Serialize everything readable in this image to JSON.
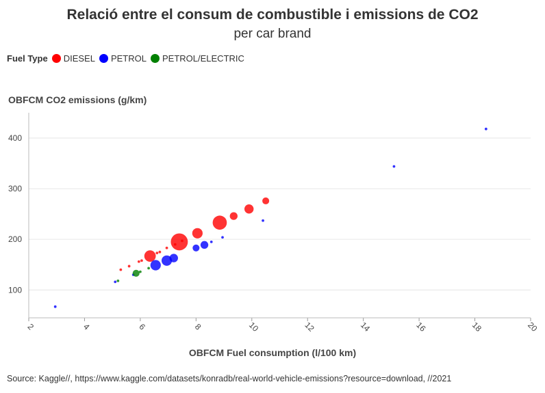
{
  "chart_data": {
    "type": "scatter",
    "title": "Relació entre el consum de combustible i emissions de CO2",
    "subtitle": "per car brand",
    "xlabel": "OBFCM Fuel consumption (l/100 km)",
    "ylabel": "OBFCM CO2 emissions (g/km)",
    "xlim": [
      2,
      20
    ],
    "ylim": [
      45,
      450
    ],
    "x_ticks": [
      2,
      4,
      6,
      8,
      10,
      12,
      14,
      16,
      18,
      20
    ],
    "y_ticks": [
      100,
      200,
      300,
      400
    ],
    "grid": true,
    "legend_title": "Fuel Type",
    "legend_position": "top-left",
    "source": "Source: Kaggle//, https://www.kaggle.com/datasets/konradb/real-world-vehicle-emissions?resource=download, //2021",
    "series": [
      {
        "name": "DIESEL",
        "color": "#ff0000",
        "points": [
          {
            "x": 5.3,
            "y": 140,
            "size": 1
          },
          {
            "x": 5.6,
            "y": 147,
            "size": 1
          },
          {
            "x": 5.95,
            "y": 156,
            "size": 1
          },
          {
            "x": 6.05,
            "y": 158,
            "size": 1
          },
          {
            "x": 6.35,
            "y": 167,
            "size": 5
          },
          {
            "x": 6.6,
            "y": 173,
            "size": 1
          },
          {
            "x": 6.7,
            "y": 175,
            "size": 1
          },
          {
            "x": 6.95,
            "y": 183,
            "size": 1
          },
          {
            "x": 7.25,
            "y": 190,
            "size": 1
          },
          {
            "x": 7.4,
            "y": 195,
            "size": 12
          },
          {
            "x": 7.5,
            "y": 197,
            "size": 1
          },
          {
            "x": 8.05,
            "y": 212,
            "size": 4
          },
          {
            "x": 8.85,
            "y": 233,
            "size": 8
          },
          {
            "x": 9.35,
            "y": 246,
            "size": 2
          },
          {
            "x": 9.9,
            "y": 260,
            "size": 3
          },
          {
            "x": 10.5,
            "y": 276,
            "size": 1.5
          }
        ]
      },
      {
        "name": "PETROL",
        "color": "#0000ff",
        "points": [
          {
            "x": 2.95,
            "y": 67,
            "size": 1
          },
          {
            "x": 5.1,
            "y": 116,
            "size": 1
          },
          {
            "x": 5.75,
            "y": 130,
            "size": 1
          },
          {
            "x": 6.55,
            "y": 149,
            "size": 4
          },
          {
            "x": 6.95,
            "y": 158,
            "size": 4
          },
          {
            "x": 7.2,
            "y": 163,
            "size": 2.5
          },
          {
            "x": 8.0,
            "y": 183,
            "size": 1.5
          },
          {
            "x": 8.3,
            "y": 189,
            "size": 2
          },
          {
            "x": 8.55,
            "y": 195,
            "size": 1
          },
          {
            "x": 8.95,
            "y": 204,
            "size": 1
          },
          {
            "x": 10.4,
            "y": 237,
            "size": 1
          },
          {
            "x": 15.1,
            "y": 344,
            "size": 1
          },
          {
            "x": 18.4,
            "y": 418,
            "size": 1
          }
        ]
      },
      {
        "name": "PETROL/ELECTRIC",
        "color": "#008000",
        "points": [
          {
            "x": 5.2,
            "y": 118,
            "size": 1
          },
          {
            "x": 5.85,
            "y": 133,
            "size": 1.5
          },
          {
            "x": 6.0,
            "y": 136,
            "size": 1
          },
          {
            "x": 6.3,
            "y": 143,
            "size": 1
          }
        ]
      }
    ]
  }
}
